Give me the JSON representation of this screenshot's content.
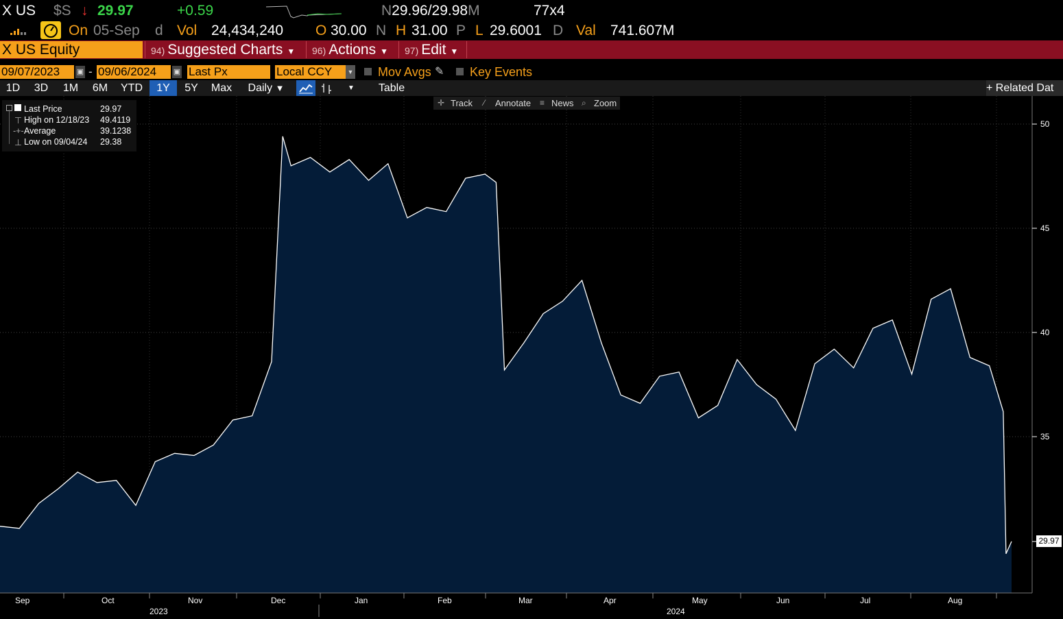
{
  "header": {
    "ticker": "X US",
    "currency": "$S",
    "last_price": "29.97",
    "change": "+0.59",
    "bid_ask_prefix": "N",
    "bid_ask": "29.96/29.98",
    "bid_ask_suffix": "M",
    "size": "77x4",
    "on_label": "On",
    "date": "05-Sep",
    "date_suffix": "d",
    "vol_label": "Vol",
    "volume": "24,434,240",
    "open_label": "O",
    "open": "30.00",
    "open_suffix": "N",
    "high_label": "H",
    "high": "31.00",
    "high_suffix": "P",
    "low_label": "L",
    "low": "29.6001",
    "low_suffix": "D",
    "val_label": "Val",
    "value": "741.607M"
  },
  "menu_bar": {
    "security": "X US Equity",
    "suggested_num": "94)",
    "suggested": "Suggested Charts",
    "actions_num": "96)",
    "actions": "Actions",
    "edit_num": "97)",
    "edit": "Edit"
  },
  "settings": {
    "start_date": "09/07/2023",
    "dash": "-",
    "end_date": "09/06/2024",
    "field": "Last Px",
    "currency": "Local CCY",
    "mov_avgs": "Mov Avgs",
    "key_events": "Key Events"
  },
  "toolbar": {
    "ranges": [
      "1D",
      "3D",
      "1M",
      "6M",
      "YTD",
      "1Y",
      "5Y",
      "Max"
    ],
    "selected_range": "1Y",
    "frequency": "Daily",
    "table": "Table",
    "related": "+ Related Dat"
  },
  "chart_controls": {
    "track": "Track",
    "annotate": "Annotate",
    "news": "News",
    "zoom": "Zoom"
  },
  "legend": {
    "last_label": "Last Price",
    "last_value": "29.97",
    "high_label": "High on 12/18/23",
    "high_value": "49.4119",
    "avg_label": "Average",
    "avg_value": "39.1238",
    "low_label": "Low on 09/04/24",
    "low_value": "29.38"
  },
  "colors": {
    "background": "#000000",
    "area_fill": "#041c38",
    "line": "#ffffff",
    "accent": "#f6a01a",
    "menu_bar": "#8a0f22",
    "up": "#3bd64a",
    "down": "#e8322f"
  },
  "chart_data": {
    "type": "area",
    "title": "",
    "y_ticks": [
      "50",
      "45",
      "40",
      "35"
    ],
    "ylim": [
      27.7,
      51.5
    ],
    "last_label": "29.97",
    "x_months": [
      "Sep",
      "Oct",
      "Nov",
      "Dec",
      "Jan",
      "Feb",
      "Mar",
      "Apr",
      "May",
      "Jun",
      "Jul",
      "Aug"
    ],
    "years": [
      "2023",
      "2024"
    ],
    "grid": true,
    "x": [
      "2023-09-07",
      "2023-09-14",
      "2023-09-21",
      "2023-09-28",
      "2023-10-05",
      "2023-10-12",
      "2023-10-19",
      "2023-10-26",
      "2023-11-02",
      "2023-11-09",
      "2023-11-16",
      "2023-11-23",
      "2023-11-30",
      "2023-12-07",
      "2023-12-14",
      "2023-12-18",
      "2023-12-21",
      "2023-12-28",
      "2024-01-04",
      "2024-01-11",
      "2024-01-18",
      "2024-01-25",
      "2024-02-01",
      "2024-02-08",
      "2024-02-15",
      "2024-02-22",
      "2024-02-29",
      "2024-03-04",
      "2024-03-07",
      "2024-03-14",
      "2024-03-21",
      "2024-03-28",
      "2024-04-04",
      "2024-04-11",
      "2024-04-18",
      "2024-04-25",
      "2024-05-02",
      "2024-05-09",
      "2024-05-16",
      "2024-05-23",
      "2024-05-30",
      "2024-06-06",
      "2024-06-13",
      "2024-06-20",
      "2024-06-27",
      "2024-07-04",
      "2024-07-11",
      "2024-07-18",
      "2024-07-25",
      "2024-08-01",
      "2024-08-08",
      "2024-08-15",
      "2024-08-22",
      "2024-08-29",
      "2024-09-03",
      "2024-09-04",
      "2024-09-06"
    ],
    "y": [
      30.7,
      30.6,
      31.8,
      32.5,
      33.3,
      32.8,
      32.9,
      31.7,
      33.8,
      34.2,
      34.1,
      34.6,
      35.8,
      36.0,
      38.6,
      49.41,
      48.0,
      48.4,
      47.7,
      48.3,
      47.3,
      48.1,
      45.5,
      46.0,
      45.8,
      47.4,
      47.6,
      47.2,
      38.2,
      39.5,
      40.9,
      41.5,
      42.5,
      39.5,
      37.0,
      36.6,
      37.9,
      38.1,
      35.9,
      36.5,
      38.7,
      37.5,
      36.8,
      35.3,
      38.5,
      39.2,
      38.3,
      40.2,
      40.6,
      38.0,
      41.6,
      42.1,
      38.8,
      38.4,
      36.2,
      29.38,
      29.97
    ]
  }
}
